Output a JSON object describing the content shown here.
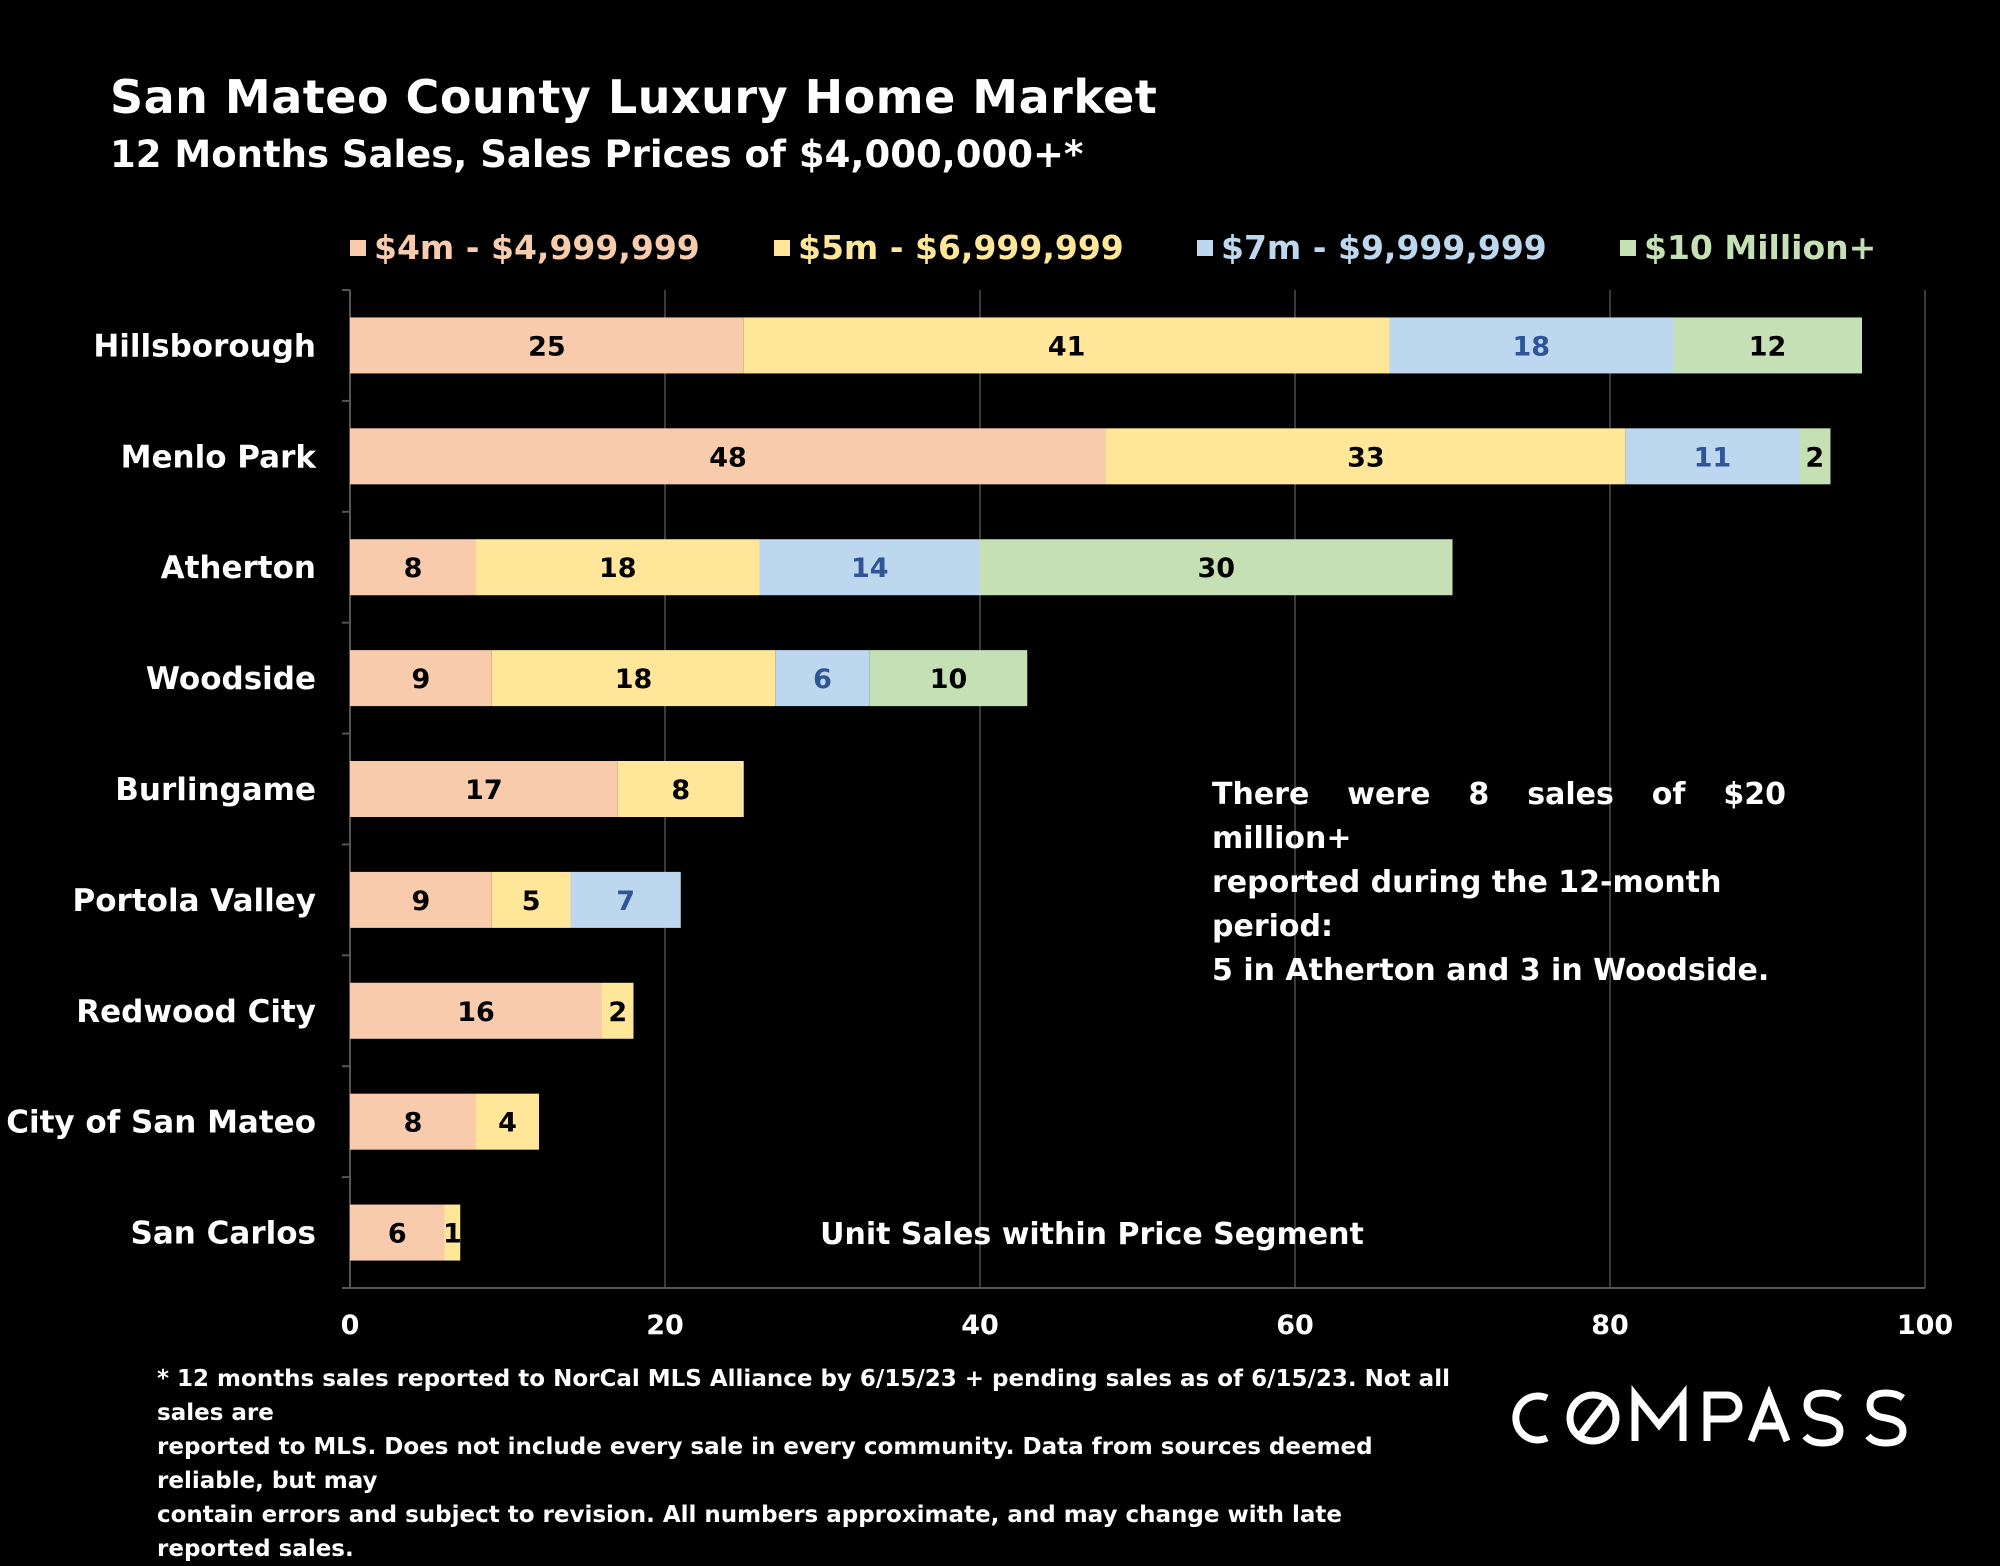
{
  "header": {
    "title": "San Mateo County Luxury Home Market",
    "subtitle": "12 Months Sales, Sales Prices of $4,000,000+*"
  },
  "legend": [
    {
      "label": "$4m - $4,999,999",
      "color": "#f8cbad",
      "text_color": "#f8cbad"
    },
    {
      "label": "$5m - $6,999,999",
      "color": "#ffe699",
      "text_color": "#ffe699"
    },
    {
      "label": "$7m - $9,999,999",
      "color": "#bdd7ee",
      "text_color": "#bdd7ee"
    },
    {
      "label": "$10 Million+",
      "color": "#c5e0b4",
      "text_color": "#c5e0b4"
    }
  ],
  "chart_data": {
    "type": "bar",
    "orientation": "horizontal",
    "stacked": true,
    "categories": [
      "Hillsborough",
      "Menlo Park",
      "Atherton",
      "Woodside",
      "Burlingame",
      "Portola Valley",
      "Redwood City",
      "City of San Mateo",
      "San Carlos"
    ],
    "series": [
      {
        "name": "$4m - $4,999,999",
        "color": "#f8cbad",
        "label_color": "#000000",
        "values": [
          25,
          48,
          8,
          9,
          17,
          9,
          16,
          8,
          6
        ]
      },
      {
        "name": "$5m - $6,999,999",
        "color": "#ffe699",
        "label_color": "#000000",
        "values": [
          41,
          33,
          18,
          18,
          8,
          5,
          2,
          4,
          1
        ]
      },
      {
        "name": "$7m - $9,999,999",
        "color": "#bdd7ee",
        "label_color": "#2f5597",
        "values": [
          18,
          11,
          14,
          6,
          null,
          7,
          null,
          null,
          null
        ]
      },
      {
        "name": "$10 Million+",
        "color": "#c5e0b4",
        "label_color": "#000000",
        "values": [
          12,
          2,
          30,
          10,
          null,
          null,
          null,
          null,
          null
        ]
      }
    ],
    "xlim": [
      0,
      100
    ],
    "xticks": [
      0,
      20,
      40,
      60,
      80,
      100
    ],
    "xlabel": "Unit Sales within Price Segment",
    "grid": "vertical",
    "legend_position": "top"
  },
  "annotation": {
    "line1": "There were 8 sales of $20 million+",
    "line2": "reported during the 12-month period:",
    "line3": "5 in Atherton and 3 in Woodside."
  },
  "footnote": {
    "line1": "* 12 months sales reported to NorCal MLS Alliance by 6/15/23 + pending sales as of 6/15/23. Not all sales are",
    "line2": "reported to MLS. Does not include every sale in every community. Data from  sources deemed reliable, but may",
    "line3": "contain errors and subject to revision. All numbers approximate, and may change with late reported sales."
  },
  "logo": {
    "text": "COMPASS"
  }
}
